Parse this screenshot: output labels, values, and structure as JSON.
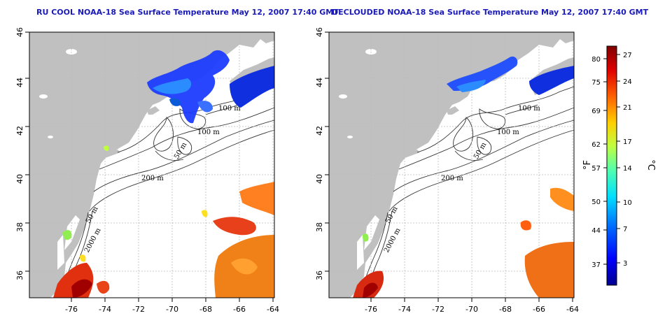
{
  "panels": [
    {
      "title": "RU COOL NOAA-18 Sea Surface Temperature May 12, 2007 17:40 GMT",
      "lat_ticks": [
        "46",
        "44",
        "42",
        "40",
        "38",
        "36"
      ],
      "lon_ticks": [
        "-76",
        "-74",
        "-72",
        "-70",
        "-68",
        "-66",
        "-64"
      ],
      "contour_labels": [
        "100 m",
        "100 m",
        "50 m",
        "200 m",
        "50 m",
        "2000 m"
      ]
    },
    {
      "title": "DECLOUDED NOAA-18 Sea Surface Temperature May 12, 2007 17:40 GMT",
      "lat_ticks": [
        "46",
        "44",
        "42",
        "40",
        "38",
        "36"
      ],
      "lon_ticks": [
        "-76",
        "-74",
        "-72",
        "-70",
        "-68",
        "-66",
        "-64"
      ],
      "contour_labels": [
        "100 m",
        "100 m",
        "50 m",
        "200 m",
        "50 m",
        "2000 m"
      ]
    }
  ],
  "colorbar": {
    "fahrenheit_label": "°F",
    "celsius_label": "°C",
    "fahrenheit_ticks": [
      "80",
      "75",
      "69",
      "62",
      "57",
      "50",
      "44",
      "37"
    ],
    "celsius_ticks": [
      "27",
      "24",
      "21",
      "17",
      "14",
      "10",
      "7",
      "3"
    ],
    "colors": [
      "#00008f",
      "#0000ff",
      "#0070ff",
      "#00dfff",
      "#50ffaf",
      "#bfff40",
      "#ffcf00",
      "#ff6000",
      "#df0000",
      "#800000"
    ]
  },
  "colors": {
    "land": "#c0c0c0",
    "water": "#ffffff",
    "title": "#1a1ab8",
    "grid": "#bbbbbb",
    "contour": "#333333"
  }
}
